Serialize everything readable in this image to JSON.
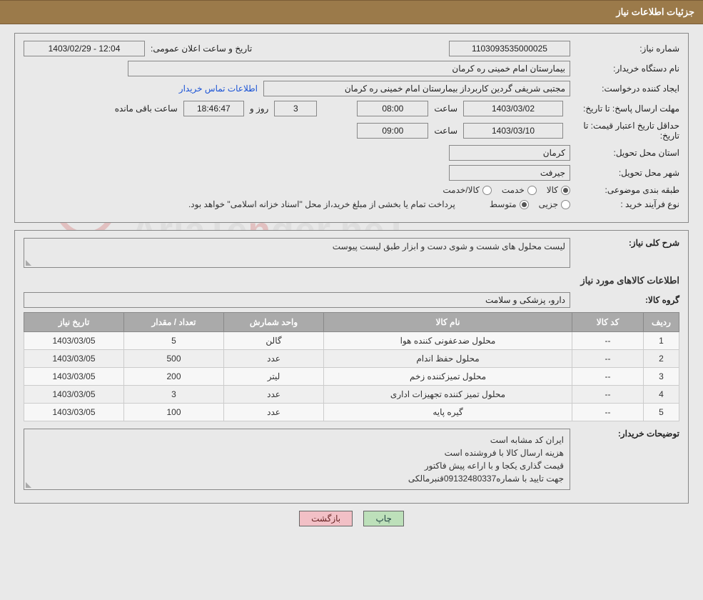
{
  "header_title": "جزئیات اطلاعات نیاز",
  "labels": {
    "need_no": "شماره نیاز:",
    "announce_dt": "تاریخ و ساعت اعلان عمومی:",
    "buyer_org": "نام دستگاه خریدار:",
    "requester": "ایجاد کننده درخواست:",
    "contact_link": "اطلاعات تماس خریدار",
    "deadline": "مهلت ارسال پاسخ: تا تاریخ:",
    "hour": "ساعت",
    "days_and": "روز و",
    "remaining": "ساعت باقی مانده",
    "price_valid": "حداقل تاریخ اعتبار قیمت: تا تاریخ:",
    "province": "استان محل تحویل:",
    "city": "شهر محل تحویل:",
    "subject_class": "طبقه بندی موضوعی:",
    "purchase_type": "نوع فرآیند خرید :",
    "radio_goods": "کالا",
    "radio_service": "خدمت",
    "radio_goods_service": "کالا/خدمت",
    "radio_partial": "جزیی",
    "radio_medium": "متوسط",
    "payment_note": "پرداخت تمام یا بخشی از مبلغ خرید،از محل \"اسناد خزانه اسلامی\" خواهد بود.",
    "general_desc": "شرح کلی نیاز:",
    "goods_info_title": "اطلاعات کالاهای مورد نیاز",
    "goods_group": "گروه کالا:",
    "buyer_notes": "توضیحات خریدار:",
    "col_idx": "ردیف",
    "col_code": "کد کالا",
    "col_name": "نام کالا",
    "col_unit": "واحد شمارش",
    "col_qty": "تعداد / مقدار",
    "col_date": "تاریخ نیاز",
    "btn_print": "چاپ",
    "btn_back": "بازگشت"
  },
  "fields": {
    "need_no": "1103093535000025",
    "announce_dt": "12:04 - 1403/02/29",
    "buyer_org": "بیمارستان امام خمینی  ره  کرمان",
    "requester": "مجتبی شریفی گردین کاربرداز بیمارستان امام خمینی  ره  کرمان",
    "deadline_date": "1403/03/02",
    "deadline_hour": "08:00",
    "remaining_days": "3",
    "remaining_time": "18:46:47",
    "price_valid_date": "1403/03/10",
    "price_valid_hour": "09:00",
    "province": "کرمان",
    "city": "جیرفت",
    "general_desc": "لیست محلول های شست و شوی دست و ابزار طبق لیست پیوست",
    "goods_group": "دارو، پزشکی و سلامت",
    "buyer_notes_1": "ایران کد مشابه است",
    "buyer_notes_2": "هزینه ارسال کالا با فروشنده است",
    "buyer_notes_3": "قیمت گذاری یکجا و با اراعه پیش فاکتور",
    "buyer_notes_4": "جهت تایید با شماره09132480337قنبرمالکی"
  },
  "subject_selected": "goods",
  "purchase_selected": "medium",
  "table": {
    "rows": [
      {
        "idx": "1",
        "code": "--",
        "name": "محلول ضدعفونی کننده هوا",
        "unit": "گالن",
        "qty": "5",
        "date": "1403/03/05"
      },
      {
        "idx": "2",
        "code": "--",
        "name": "محلول حفظ اندام",
        "unit": "عدد",
        "qty": "500",
        "date": "1403/03/05"
      },
      {
        "idx": "3",
        "code": "--",
        "name": "محلول تمیزکننده زخم",
        "unit": "لیتر",
        "qty": "200",
        "date": "1403/03/05"
      },
      {
        "idx": "4",
        "code": "--",
        "name": "محلول تمیز کننده تجهیزات اداری",
        "unit": "عدد",
        "qty": "3",
        "date": "1403/03/05"
      },
      {
        "idx": "5",
        "code": "--",
        "name": "گیره پایه",
        "unit": "عدد",
        "qty": "100",
        "date": "1403/03/05"
      }
    ]
  },
  "colors": {
    "header_bg": "#9b7a4a",
    "page_bg": "#e9e9e9",
    "th_bg": "#aaaaaa",
    "link": "#1a53d6",
    "btn_print_bg": "#bde0ba",
    "btn_back_bg": "#f2c0c6"
  }
}
